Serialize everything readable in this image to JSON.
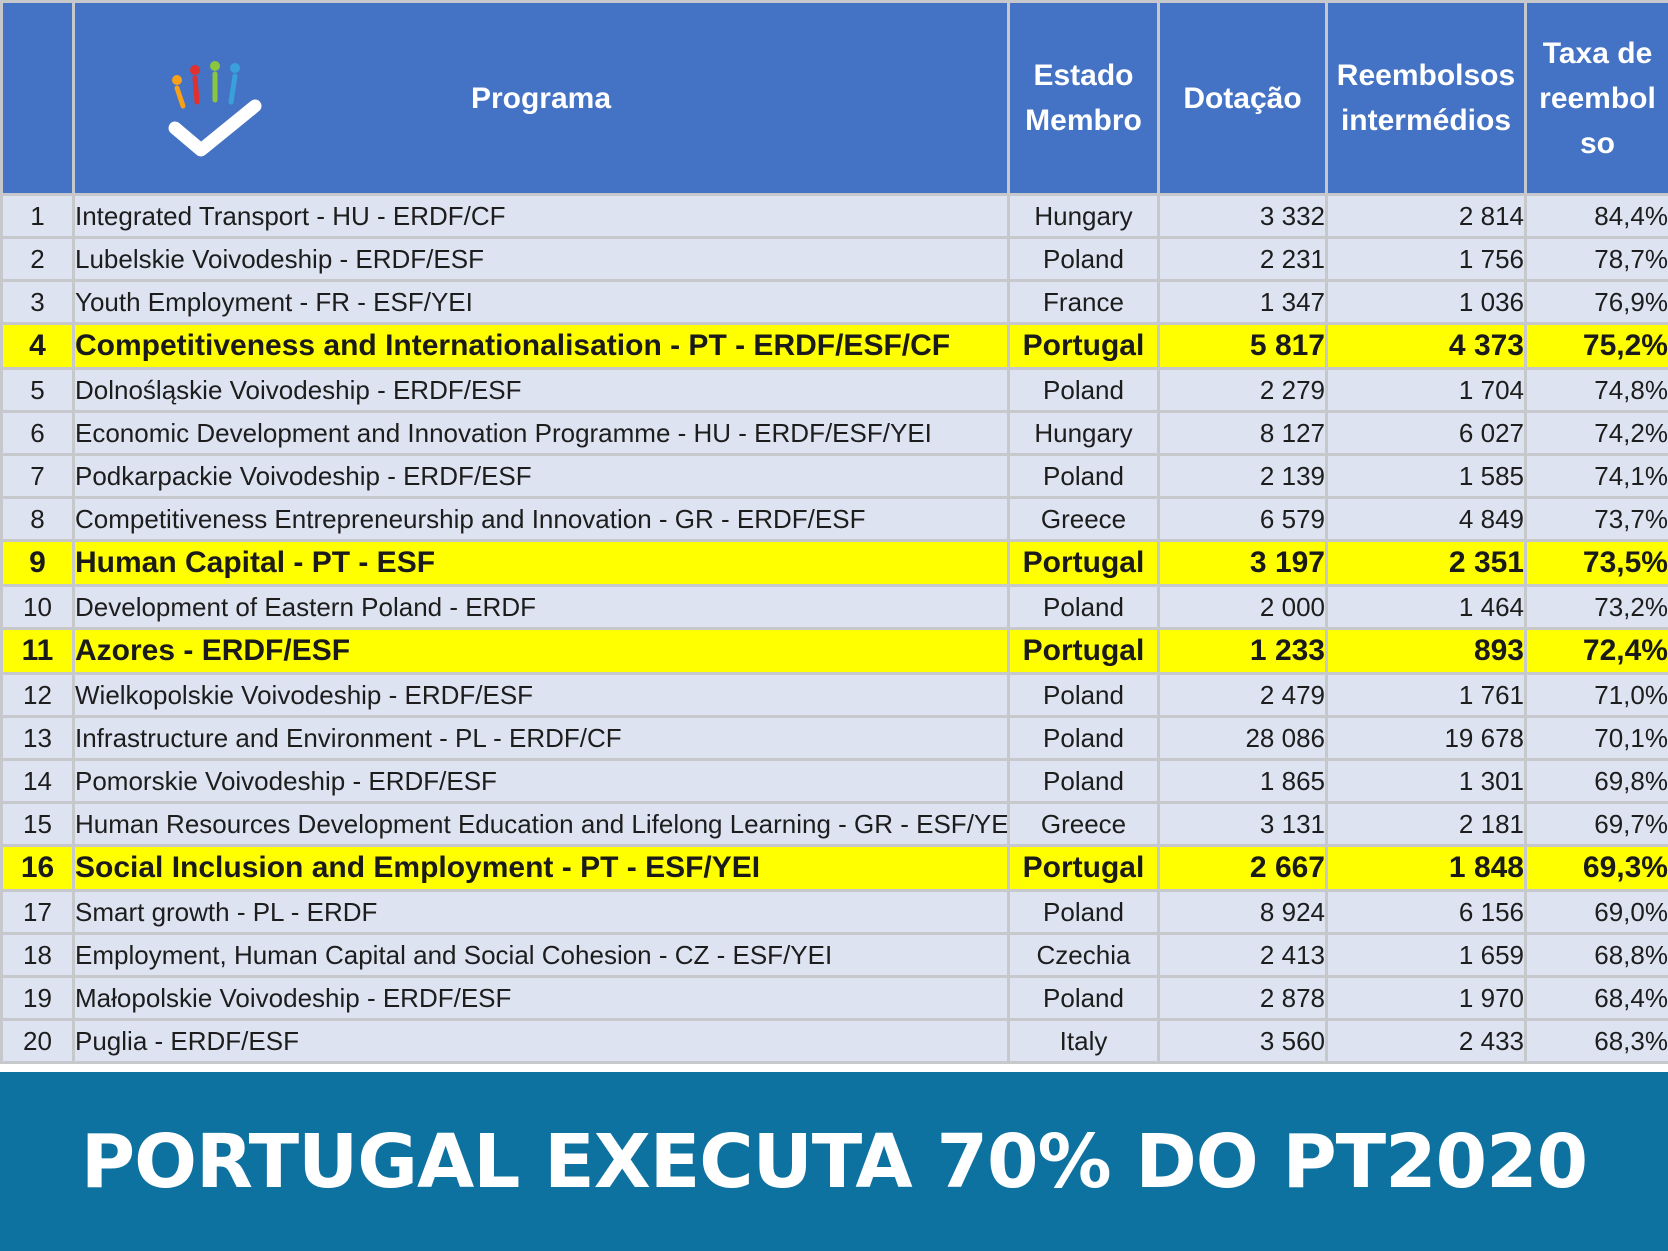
{
  "colors": {
    "header_bg": "#4472c4",
    "row_bg": "#dde3f1",
    "highlight_bg": "#ffff00",
    "banner_bg": "#0e72a0",
    "logo_check": "#4472c4"
  },
  "headers": {
    "rank": "",
    "programa": "Programa",
    "estado_line1": "Estado",
    "estado_line2": "Membro",
    "dotacao": "Dotação",
    "reembolsos_line1": "Reembolsos",
    "reembolsos_line2": "intermédios",
    "taxa_line1": "Taxa de",
    "taxa_line2": "reembol",
    "taxa_line3": "so"
  },
  "rows": [
    {
      "rank": "1",
      "programa": "Integrated Transport - HU - ERDF/CF",
      "estado": "Hungary",
      "dotacao": "3 332",
      "reembolsos": "2 814",
      "taxa": "84,4%"
    },
    {
      "rank": "2",
      "programa": "Lubelskie Voivodeship - ERDF/ESF",
      "estado": "Poland",
      "dotacao": "2 231",
      "reembolsos": "1 756",
      "taxa": "78,7%"
    },
    {
      "rank": "3",
      "programa": "Youth Employment - FR - ESF/YEI",
      "estado": "France",
      "dotacao": "1 347",
      "reembolsos": "1 036",
      "taxa": "76,9%"
    },
    {
      "rank": "4",
      "programa": "Competitiveness and Internationalisation  - PT - ERDF/ESF/CF",
      "estado": "Portugal",
      "dotacao": "5 817",
      "reembolsos": "4 373",
      "taxa": "75,2%"
    },
    {
      "rank": "5",
      "programa": "Dolnośląskie Voivodeship - ERDF/ESF",
      "estado": "Poland",
      "dotacao": "2 279",
      "reembolsos": "1 704",
      "taxa": "74,8%"
    },
    {
      "rank": "6",
      "programa": "Economic Development and Innovation Programme - HU - ERDF/ESF/YEI",
      "estado": "Hungary",
      "dotacao": "8 127",
      "reembolsos": "6 027",
      "taxa": "74,2%"
    },
    {
      "rank": "7",
      "programa": "Podkarpackie Voivodeship - ERDF/ESF",
      "estado": "Poland",
      "dotacao": "2 139",
      "reembolsos": "1 585",
      "taxa": "74,1%"
    },
    {
      "rank": "8",
      "programa": "Competitiveness Entrepreneurship and Innovation - GR - ERDF/ESF",
      "estado": "Greece",
      "dotacao": "6 579",
      "reembolsos": "4 849",
      "taxa": "73,7%"
    },
    {
      "rank": "9",
      "programa": "Human Capital - PT - ESF",
      "estado": "Portugal",
      "dotacao": "3 197",
      "reembolsos": "2 351",
      "taxa": "73,5%"
    },
    {
      "rank": "10",
      "programa": "Development of Eastern Poland - ERDF",
      "estado": "Poland",
      "dotacao": "2 000",
      "reembolsos": "1 464",
      "taxa": "73,2%"
    },
    {
      "rank": "11",
      "programa": "Azores - ERDF/ESF",
      "estado": "Portugal",
      "dotacao": "1 233",
      "reembolsos": "893",
      "taxa": "72,4%"
    },
    {
      "rank": "12",
      "programa": "Wielkopolskie Voivodeship - ERDF/ESF",
      "estado": "Poland",
      "dotacao": "2 479",
      "reembolsos": "1 761",
      "taxa": "71,0%"
    },
    {
      "rank": "13",
      "programa": "Infrastructure and Environment - PL - ERDF/CF",
      "estado": "Poland",
      "dotacao": "28 086",
      "reembolsos": "19 678",
      "taxa": "70,1%"
    },
    {
      "rank": "14",
      "programa": "Pomorskie Voivodeship - ERDF/ESF",
      "estado": "Poland",
      "dotacao": "1 865",
      "reembolsos": "1 301",
      "taxa": "69,8%"
    },
    {
      "rank": "15",
      "programa": "Human Resources Development Education and Lifelong Learning - GR - ESF/YE",
      "estado": "Greece",
      "dotacao": "3 131",
      "reembolsos": "2 181",
      "taxa": "69,7%"
    },
    {
      "rank": "16",
      "programa": "Social Inclusion and Employment - PT - ESF/YEI",
      "estado": "Portugal",
      "dotacao": "2 667",
      "reembolsos": "1 848",
      "taxa": "69,3%"
    },
    {
      "rank": "17",
      "programa": "Smart growth - PL - ERDF",
      "estado": "Poland",
      "dotacao": "8 924",
      "reembolsos": "6 156",
      "taxa": "69,0%"
    },
    {
      "rank": "18",
      "programa": "Employment, Human Capital and Social Cohesion - CZ - ESF/YEI",
      "estado": "Czechia",
      "dotacao": "2 413",
      "reembolsos": "1 659",
      "taxa": "68,8%"
    },
    {
      "rank": "19",
      "programa": "Małopolskie Voivodeship - ERDF/ESF",
      "estado": "Poland",
      "dotacao": "2 878",
      "reembolsos": "1 970",
      "taxa": "68,4%"
    },
    {
      "rank": "20",
      "programa": "Puglia  - ERDF/ESF",
      "estado": "Italy",
      "dotacao": "3 560",
      "reembolsos": "2 433",
      "taxa": "68,3%"
    }
  ],
  "highlighted_estado": "Portugal",
  "banner": {
    "text": "PORTUGAL EXECUTA 70% DO PT2020"
  },
  "chart_data": {
    "type": "table",
    "columns": [
      "",
      "Programa",
      "Estado Membro",
      "Dotação",
      "Reembolsos intermédios",
      "Taxa de reembolso"
    ],
    "rows": [
      [
        1,
        "Integrated Transport - HU - ERDF/CF",
        "Hungary",
        3332,
        2814,
        84.4
      ],
      [
        2,
        "Lubelskie Voivodeship - ERDF/ESF",
        "Poland",
        2231,
        1756,
        78.7
      ],
      [
        3,
        "Youth Employment - FR - ESF/YEI",
        "France",
        1347,
        1036,
        76.9
      ],
      [
        4,
        "Competitiveness and Internationalisation  - PT - ERDF/ESF/CF",
        "Portugal",
        5817,
        4373,
        75.2
      ],
      [
        5,
        "Dolnośląskie Voivodeship - ERDF/ESF",
        "Poland",
        2279,
        1704,
        74.8
      ],
      [
        6,
        "Economic Development and Innovation Programme - HU - ERDF/ESF/YEI",
        "Hungary",
        8127,
        6027,
        74.2
      ],
      [
        7,
        "Podkarpackie Voivodeship - ERDF/ESF",
        "Poland",
        2139,
        1585,
        74.1
      ],
      [
        8,
        "Competitiveness Entrepreneurship and Innovation - GR - ERDF/ESF",
        "Greece",
        6579,
        4849,
        73.7
      ],
      [
        9,
        "Human Capital - PT - ESF",
        "Portugal",
        3197,
        2351,
        73.5
      ],
      [
        10,
        "Development of Eastern Poland - ERDF",
        "Poland",
        2000,
        1464,
        73.2
      ],
      [
        11,
        "Azores - ERDF/ESF",
        "Portugal",
        1233,
        893,
        72.4
      ],
      [
        12,
        "Wielkopolskie Voivodeship - ERDF/ESF",
        "Poland",
        2479,
        1761,
        71.0
      ],
      [
        13,
        "Infrastructure and Environment - PL - ERDF/CF",
        "Poland",
        28086,
        19678,
        70.1
      ],
      [
        14,
        "Pomorskie Voivodeship - ERDF/ESF",
        "Poland",
        1865,
        1301,
        69.8
      ],
      [
        15,
        "Human Resources Development Education and Lifelong Learning - GR - ESF/YE",
        "Greece",
        3131,
        2181,
        69.7
      ],
      [
        16,
        "Social Inclusion and Employment - PT - ESF/YEI",
        "Portugal",
        2667,
        1848,
        69.3
      ],
      [
        17,
        "Smart growth - PL - ERDF",
        "Poland",
        8924,
        6156,
        69.0
      ],
      [
        18,
        "Employment, Human Capital and Social Cohesion - CZ - ESF/YEI",
        "Czechia",
        2413,
        1659,
        68.8
      ],
      [
        19,
        "Małopolskie Voivodeship - ERDF/ESF",
        "Poland",
        2878,
        1970,
        68.4
      ],
      [
        20,
        "Puglia  - ERDF/ESF",
        "Italy",
        3560,
        2433,
        68.3
      ]
    ]
  }
}
